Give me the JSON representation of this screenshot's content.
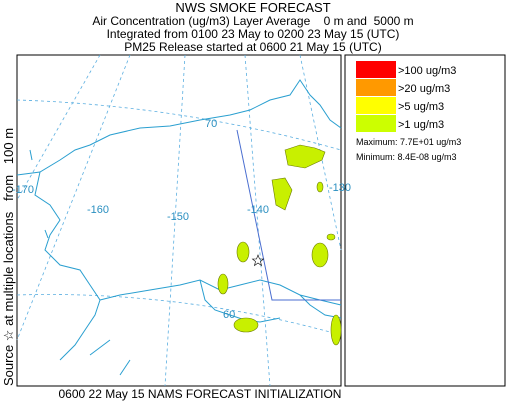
{
  "header": {
    "title": "NWS SMOKE FORECAST",
    "line1": "Air Concentration (ug/m3) Layer Average    0 m and  5000 m",
    "line2": "Integrated from 0100 23 May to 0200 23 May 15 (UTC)",
    "line3": "PM25 Release started at 0600 21 May 15 (UTC)"
  },
  "side_label": "Source ☆ at multiple locations   from   100 m",
  "map": {
    "grid_labels": [
      "70",
      "-170",
      "-160",
      "-150",
      "-140",
      "-130",
      "60"
    ]
  },
  "legend": {
    "items": [
      {
        "label": ">100 ug/m3",
        "color": "#ff0000"
      },
      {
        "label": ">20 ug/m3",
        "color": "#ff9900"
      },
      {
        "label": ">5 ug/m3",
        "color": "#ffff00"
      },
      {
        "label": ">1 ug/m3",
        "color": "#ccff00"
      }
    ],
    "maximum": "Maximum: 7.7E+01 ug/m3",
    "minimum": "Minimum: 8.4E-08 ug/m3"
  },
  "footer": "0600 22 May 15 NAMS FORECAST INITIALIZATION"
}
